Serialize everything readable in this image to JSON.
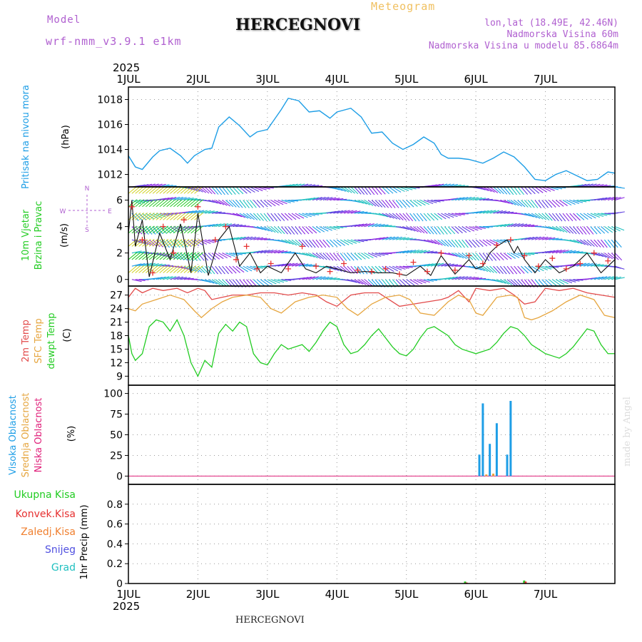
{
  "header": {
    "model_label": "Model",
    "model_name": "wrf-nmm_v3.9.1  e1km",
    "title": "HERCEGNOVI",
    "meteogram_label": "Meteogram",
    "coords": "lon,lat (18.49E, 42.46N)",
    "elevation": "Nadmorska Visina 60m",
    "model_elevation": "Nadmorska Visina u modelu 85.6864m"
  },
  "footer": {
    "station": "HERCEGNOVI",
    "credit": "made by Angel"
  },
  "colors": {
    "pressure": "#1e9ee6",
    "t2m": "#e24a4a",
    "sfc": "#e6a640",
    "dewpt": "#22cc22",
    "cloud_high": "#1e9ee6",
    "cloud_mid": "#e6a640",
    "cloud_low": "#e0207a",
    "wind_speed": "#111111",
    "gust": "#e63030",
    "model_label": "#b060d0",
    "meteogram_label": "#f0c060"
  },
  "chart_data": [
    {
      "type": "line",
      "panel": "pressure",
      "x_ticks": [
        "1JUL",
        "2JUL",
        "3JUL",
        "4JUL",
        "5JUL",
        "6JUL",
        "7JUL"
      ],
      "year_label": "2025",
      "ylabel": [
        "Pritisak na nivou mora",
        "(hPa)"
      ],
      "ylim": [
        1011,
        1019
      ],
      "y_ticks": [
        1012,
        1014,
        1016,
        1018
      ],
      "grid": true,
      "series": [
        {
          "name": "Pritisak na nivou mora",
          "x": [
            0,
            0.1,
            0.2,
            0.35,
            0.45,
            0.6,
            0.75,
            0.85,
            0.95,
            1.1,
            1.2,
            1.3,
            1.45,
            1.6,
            1.75,
            1.85,
            2.0,
            2.2,
            2.3,
            2.45,
            2.6,
            2.75,
            2.9,
            3.0,
            3.2,
            3.35,
            3.5,
            3.65,
            3.8,
            3.95,
            4.1,
            4.25,
            4.4,
            4.5,
            4.6,
            4.75,
            4.9,
            5.1,
            5.25,
            5.4,
            5.55,
            5.7,
            5.85,
            6.0,
            6.15,
            6.3,
            6.45,
            6.6,
            6.75,
            6.9,
            7.0
          ],
          "y": [
            1013.5,
            1012.6,
            1012.4,
            1013.4,
            1013.9,
            1014.1,
            1013.5,
            1012.9,
            1013.5,
            1014.0,
            1014.1,
            1015.8,
            1016.6,
            1015.9,
            1015.0,
            1015.4,
            1015.6,
            1017.2,
            1018.1,
            1017.9,
            1017.0,
            1017.1,
            1016.5,
            1017.0,
            1017.3,
            1016.6,
            1015.3,
            1015.4,
            1014.5,
            1014.0,
            1014.4,
            1015.0,
            1014.5,
            1013.6,
            1013.3,
            1013.3,
            1013.2,
            1012.9,
            1013.3,
            1013.8,
            1013.4,
            1012.6,
            1011.6,
            1011.5,
            1012.0,
            1012.3,
            1011.9,
            1011.5,
            1011.6,
            1012.2,
            1012.1
          ]
        }
      ]
    },
    {
      "type": "line",
      "panel": "wind",
      "ylabel": [
        "10m Vjetar",
        "Brzina i Pravac",
        "(m/s)"
      ],
      "compass": {
        "n": "N",
        "e": "E",
        "s": "S",
        "w": "W"
      },
      "ylim": [
        -0.5,
        7
      ],
      "y_ticks": [
        0,
        2,
        4,
        6
      ],
      "grid": true,
      "wind_levels": [
        0,
        1,
        2,
        3,
        4,
        5,
        6,
        7
      ],
      "series": [
        {
          "name": "10m wind speed",
          "x": [
            0,
            0.05,
            0.1,
            0.2,
            0.3,
            0.45,
            0.6,
            0.75,
            0.9,
            1.0,
            1.15,
            1.3,
            1.45,
            1.6,
            1.75,
            1.9,
            2.0,
            2.2,
            2.4,
            2.55,
            2.7,
            2.85,
            3.0,
            3.2,
            3.4,
            3.6,
            3.8,
            4.0,
            4.2,
            4.35,
            4.5,
            4.7,
            4.9,
            5.0,
            5.1,
            5.2,
            5.3,
            5.45,
            5.55,
            5.6,
            5.7,
            5.85,
            6.0,
            6.2,
            6.4,
            6.6,
            6.8,
            7.0
          ],
          "y": [
            3.5,
            6.0,
            2.5,
            4.5,
            0.2,
            3.5,
            1.5,
            4.2,
            0.5,
            5.0,
            0.3,
            3.0,
            4.0,
            1.0,
            2.0,
            0.5,
            1.0,
            0.5,
            2.0,
            0.8,
            0.5,
            1.0,
            0.8,
            0.5,
            0.6,
            0.5,
            0.5,
            0.3,
            1.0,
            0.3,
            1.8,
            0.4,
            1.5,
            0.8,
            1.0,
            2.0,
            2.5,
            3.0,
            2.0,
            2.5,
            1.5,
            0.5,
            1.5,
            0.5,
            1.0,
            2.0,
            0.5,
            1.5
          ]
        },
        {
          "name": "gust",
          "x": [
            0.05,
            0.2,
            0.35,
            0.5,
            0.65,
            0.8,
            1.0,
            1.25,
            1.4,
            1.55,
            1.7,
            1.85,
            2.05,
            2.3,
            2.5,
            2.7,
            2.9,
            3.1,
            3.3,
            3.5,
            3.7,
            3.9,
            4.1,
            4.3,
            4.5,
            4.7,
            4.9,
            5.1,
            5.3,
            5.5,
            5.7,
            5.9,
            6.1,
            6.3,
            6.5,
            6.7,
            6.9
          ],
          "y": [
            5.5,
            3.0,
            0.5,
            4.0,
            2.0,
            4.5,
            5.5,
            3.0,
            4.0,
            1.5,
            2.5,
            0.8,
            1.2,
            0.8,
            2.5,
            1.0,
            0.6,
            1.2,
            0.7,
            0.6,
            0.8,
            0.4,
            1.3,
            0.6,
            2.0,
            0.7,
            1.8,
            1.2,
            2.6,
            3.0,
            1.8,
            1.0,
            1.6,
            0.8,
            1.2,
            2.0,
            1.4
          ]
        }
      ]
    },
    {
      "type": "line",
      "panel": "temperature",
      "ylabel": [
        "2m Temp",
        "SFC Temp",
        "dewpt Temp",
        "(C)"
      ],
      "ylim": [
        7,
        29
      ],
      "y_ticks": [
        9,
        12,
        15,
        18,
        21,
        24,
        27
      ],
      "grid": true,
      "series": [
        {
          "name": "2m Temp",
          "x": [
            0,
            0.1,
            0.2,
            0.35,
            0.5,
            0.7,
            0.85,
            1.0,
            1.1,
            1.2,
            1.35,
            1.5,
            1.7,
            1.9,
            2.1,
            2.3,
            2.5,
            2.7,
            2.85,
            3.0,
            3.2,
            3.4,
            3.6,
            3.75,
            3.9,
            4.1,
            4.3,
            4.5,
            4.6,
            4.75,
            4.9,
            5.0,
            5.2,
            5.4,
            5.55,
            5.7,
            5.85,
            6.0,
            6.2,
            6.4,
            6.6,
            6.8,
            7.0
          ],
          "y": [
            26.5,
            28.5,
            27.5,
            28.5,
            28.0,
            28.5,
            27.5,
            28.5,
            28.0,
            26.0,
            26.5,
            27.0,
            27.0,
            27.5,
            27.5,
            27.0,
            27.5,
            27.0,
            25.5,
            24.5,
            27.0,
            27.5,
            27.5,
            26.0,
            24.5,
            25.0,
            25.5,
            26.0,
            26.5,
            28.0,
            25.5,
            28.5,
            28.0,
            28.5,
            27.0,
            25.0,
            25.5,
            28.5,
            28.0,
            28.5,
            27.5,
            27.0,
            26.5
          ]
        },
        {
          "name": "SFC Temp",
          "x": [
            0,
            0.1,
            0.2,
            0.4,
            0.6,
            0.8,
            0.95,
            1.05,
            1.2,
            1.35,
            1.5,
            1.7,
            1.9,
            2.05,
            2.2,
            2.4,
            2.6,
            2.8,
            3.0,
            3.15,
            3.3,
            3.5,
            3.7,
            3.9,
            4.05,
            4.2,
            4.4,
            4.6,
            4.75,
            4.9,
            5.0,
            5.1,
            5.3,
            5.5,
            5.6,
            5.7,
            5.8,
            5.9,
            6.1,
            6.3,
            6.5,
            6.7,
            6.85,
            7.0
          ],
          "y": [
            24.0,
            23.5,
            25.0,
            26.0,
            27.0,
            26.0,
            23.5,
            22.0,
            24.0,
            25.5,
            26.5,
            27.0,
            26.5,
            24.0,
            23.0,
            25.5,
            26.5,
            27.0,
            26.5,
            24.0,
            22.5,
            25.0,
            26.5,
            27.0,
            26.0,
            23.0,
            22.5,
            25.5,
            27.0,
            26.0,
            23.0,
            22.5,
            26.5,
            27.0,
            26.5,
            22.0,
            21.5,
            22.0,
            23.5,
            25.5,
            27.0,
            26.0,
            22.5,
            22.0
          ]
        },
        {
          "name": "dewpt Temp",
          "x": [
            0,
            0.05,
            0.1,
            0.2,
            0.3,
            0.4,
            0.5,
            0.6,
            0.7,
            0.8,
            0.9,
            1.0,
            1.1,
            1.2,
            1.3,
            1.4,
            1.5,
            1.6,
            1.7,
            1.8,
            1.9,
            2.0,
            2.1,
            2.2,
            2.3,
            2.4,
            2.5,
            2.6,
            2.7,
            2.8,
            2.9,
            3.0,
            3.1,
            3.2,
            3.3,
            3.4,
            3.5,
            3.6,
            3.7,
            3.8,
            3.9,
            4.0,
            4.1,
            4.2,
            4.3,
            4.4,
            4.5,
            4.6,
            4.7,
            4.8,
            4.9,
            5.0,
            5.1,
            5.2,
            5.3,
            5.4,
            5.5,
            5.6,
            5.7,
            5.8,
            5.9,
            6.0,
            6.1,
            6.2,
            6.3,
            6.4,
            6.5,
            6.6,
            6.7,
            6.8,
            6.9,
            7.0
          ],
          "y": [
            18.0,
            14.0,
            12.5,
            14.0,
            20.0,
            21.5,
            21.0,
            19.0,
            21.5,
            18.0,
            12.0,
            9.0,
            12.5,
            11.0,
            18.5,
            20.5,
            19.0,
            21.0,
            20.0,
            14.0,
            12.0,
            11.5,
            14.0,
            16.0,
            15.0,
            15.5,
            16.0,
            14.5,
            16.5,
            19.0,
            21.0,
            20.0,
            16.0,
            14.0,
            14.5,
            16.0,
            18.0,
            19.5,
            17.5,
            15.5,
            14.0,
            13.5,
            15.0,
            17.5,
            19.5,
            20.0,
            19.0,
            18.0,
            16.0,
            15.0,
            14.5,
            14.0,
            14.5,
            15.0,
            16.5,
            18.5,
            20.0,
            19.5,
            18.0,
            16.0,
            15.0,
            14.0,
            13.5,
            13.0,
            14.0,
            15.5,
            17.5,
            19.5,
            19.0,
            16.0,
            14.0,
            14.0
          ]
        }
      ]
    },
    {
      "type": "bar",
      "panel": "cloud",
      "ylabel": [
        "Visoka Oblacnost",
        "Srednja Oblacnost",
        "Niska Oblacnost",
        "(%)"
      ],
      "ylim": [
        -10,
        110
      ],
      "y_ticks": [
        0,
        25,
        50,
        75,
        100
      ],
      "grid": true,
      "series": [
        {
          "name": "Visoka Oblacnost",
          "x": [
            5.05,
            5.1,
            5.2,
            5.3,
            5.45,
            5.5
          ],
          "values": [
            26,
            88,
            39,
            64,
            26,
            91
          ]
        },
        {
          "name": "Srednja Oblacnost",
          "x": [
            5.15,
            5.25
          ],
          "values": [
            2,
            3
          ]
        },
        {
          "name": "Niska Oblacnost",
          "x": [],
          "values": []
        }
      ]
    },
    {
      "type": "bar",
      "panel": "precip",
      "ylabel": [
        "1hr Precip (mm)"
      ],
      "legend": [
        "Ukupna Kisa",
        "Konvek.Kisa",
        "Zaledj.Kisa",
        "Snijeg",
        "Grad"
      ],
      "ylim": [
        0,
        1.0
      ],
      "y_ticks": [
        0,
        0.2,
        0.4,
        0.6,
        0.8
      ],
      "grid": true,
      "series": [
        {
          "name": "Ukupna Kisa",
          "x": [
            4.85,
            5.7
          ],
          "values": [
            0.02,
            0.03
          ]
        },
        {
          "name": "Konvek.Kisa",
          "x": [
            4.85,
            5.7
          ],
          "values": [
            0.01,
            0.02
          ]
        }
      ]
    }
  ]
}
